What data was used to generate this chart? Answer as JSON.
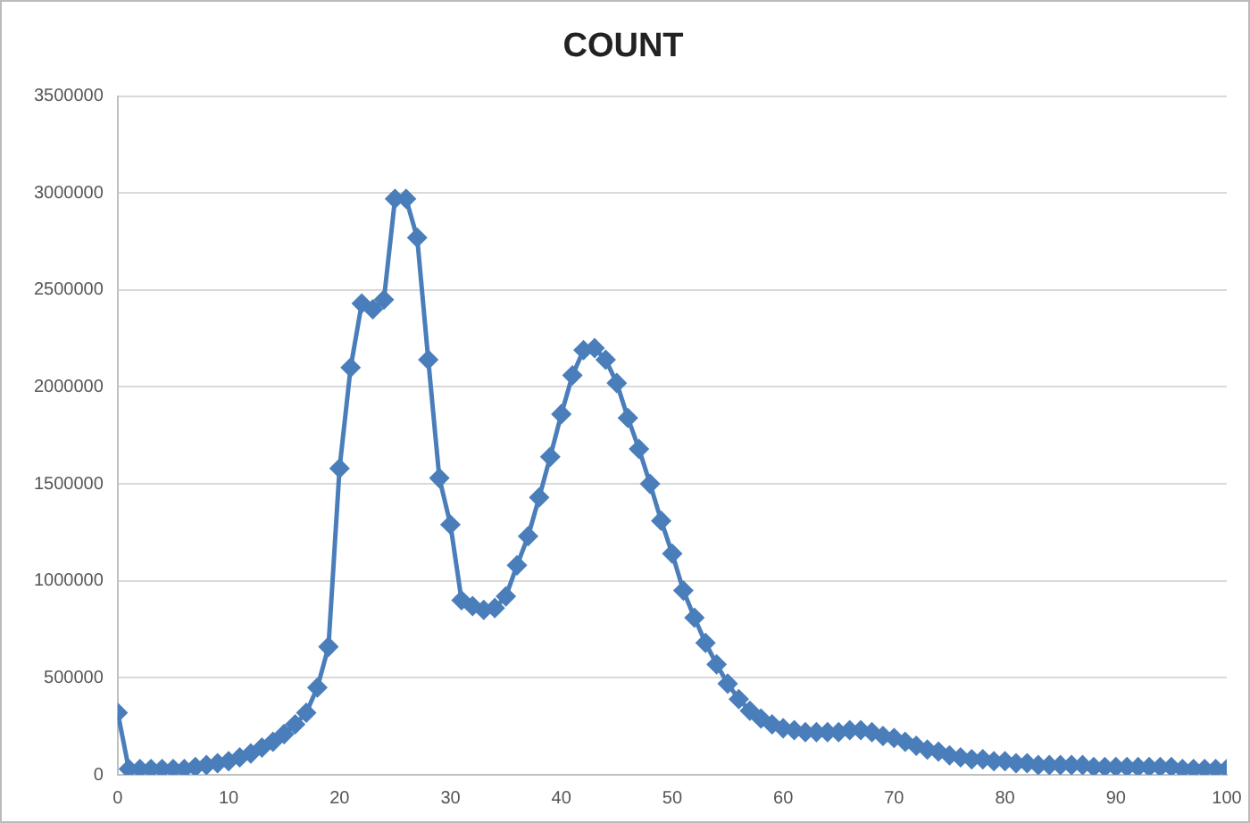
{
  "chart_data": {
    "type": "line",
    "title": "COUNT",
    "x": [
      0,
      1,
      2,
      3,
      4,
      5,
      6,
      7,
      8,
      9,
      10,
      11,
      12,
      13,
      14,
      15,
      16,
      17,
      18,
      19,
      20,
      21,
      22,
      23,
      24,
      25,
      26,
      27,
      28,
      29,
      30,
      31,
      32,
      33,
      34,
      35,
      36,
      37,
      38,
      39,
      40,
      41,
      42,
      43,
      44,
      45,
      46,
      47,
      48,
      49,
      50,
      51,
      52,
      53,
      54,
      55,
      56,
      57,
      58,
      59,
      60,
      61,
      62,
      63,
      64,
      65,
      66,
      67,
      68,
      69,
      70,
      71,
      72,
      73,
      74,
      75,
      76,
      77,
      78,
      79,
      80,
      81,
      82,
      83,
      84,
      85,
      86,
      87,
      88,
      89,
      90,
      91,
      92,
      93,
      94,
      95,
      96,
      97,
      98,
      99,
      100
    ],
    "series": [
      {
        "color": "#4a7ebb",
        "values": [
          320000,
          30000,
          30000,
          30000,
          30000,
          30000,
          30000,
          40000,
          50000,
          60000,
          70000,
          90000,
          110000,
          140000,
          170000,
          210000,
          260000,
          320000,
          450000,
          660000,
          1580000,
          2100000,
          2430000,
          2400000,
          2450000,
          2970000,
          2970000,
          2770000,
          2140000,
          1530000,
          1290000,
          900000,
          870000,
          850000,
          860000,
          920000,
          1080000,
          1230000,
          1430000,
          1640000,
          1860000,
          2060000,
          2190000,
          2200000,
          2140000,
          2020000,
          1840000,
          1680000,
          1500000,
          1310000,
          1140000,
          950000,
          810000,
          680000,
          570000,
          470000,
          390000,
          330000,
          290000,
          260000,
          240000,
          230000,
          220000,
          220000,
          220000,
          220000,
          230000,
          230000,
          220000,
          200000,
          190000,
          170000,
          150000,
          130000,
          120000,
          100000,
          90000,
          80000,
          80000,
          70000,
          70000,
          60000,
          60000,
          50000,
          50000,
          50000,
          50000,
          50000,
          40000,
          40000,
          40000,
          40000,
          40000,
          40000,
          40000,
          40000,
          30000,
          30000,
          30000,
          30000,
          30000
        ]
      }
    ],
    "xlim": [
      0,
      100
    ],
    "xticks": [
      0,
      10,
      20,
      30,
      40,
      50,
      60,
      70,
      80,
      90,
      100
    ],
    "ylim": [
      0,
      3500000
    ],
    "yticks": [
      0,
      500000,
      1000000,
      1500000,
      2000000,
      2500000,
      3000000,
      3500000
    ],
    "grid": "y",
    "legend": false,
    "marker": "diamond",
    "line_style": "solid"
  }
}
